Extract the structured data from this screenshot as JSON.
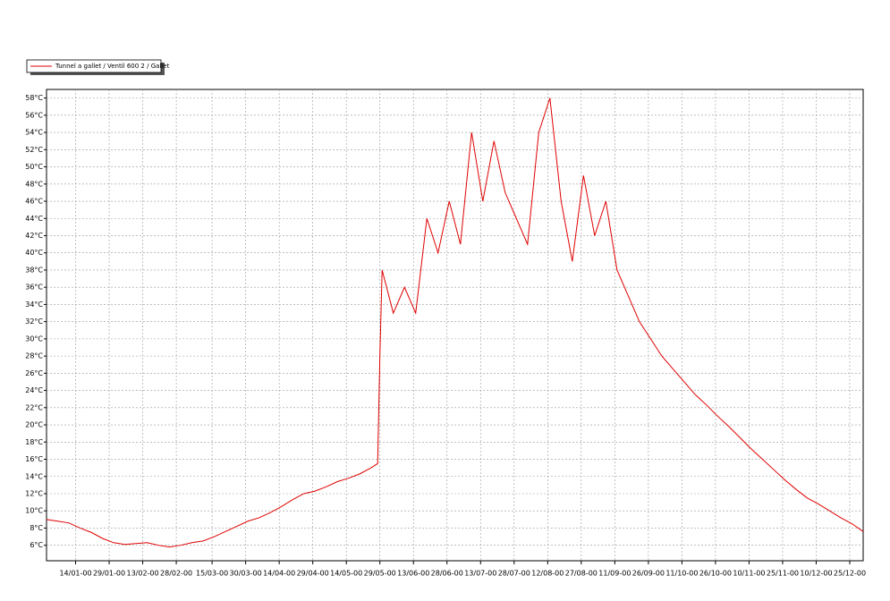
{
  "chart_data": {
    "type": "line",
    "legend_position": "top-left",
    "grid": true,
    "x": [
      "2000-01-01",
      "2000-01-06",
      "2000-01-11",
      "2000-01-16",
      "2000-01-21",
      "2000-01-26",
      "2000-01-31",
      "2000-02-05",
      "2000-02-10",
      "2000-02-15",
      "2000-02-20",
      "2000-02-25",
      "2000-03-01",
      "2000-03-06",
      "2000-03-11",
      "2000-03-16",
      "2000-03-21",
      "2000-03-26",
      "2000-03-31",
      "2000-04-05",
      "2000-04-10",
      "2000-04-15",
      "2000-04-20",
      "2000-04-25",
      "2000-04-30",
      "2000-05-05",
      "2000-05-10",
      "2000-05-15",
      "2000-05-20",
      "2000-05-25",
      "2000-05-28",
      "2000-05-29",
      "2000-05-30",
      "2000-06-04",
      "2000-06-09",
      "2000-06-14",
      "2000-06-19",
      "2000-06-24",
      "2000-06-29",
      "2000-07-04",
      "2000-07-09",
      "2000-07-14",
      "2000-07-19",
      "2000-07-24",
      "2000-07-29",
      "2000-08-03",
      "2000-08-08",
      "2000-08-13",
      "2000-08-18",
      "2000-08-23",
      "2000-08-28",
      "2000-09-02",
      "2000-09-07",
      "2000-09-12",
      "2000-09-17",
      "2000-09-22",
      "2000-09-27",
      "2000-10-02",
      "2000-10-07",
      "2000-10-12",
      "2000-10-17",
      "2000-10-22",
      "2000-10-27",
      "2000-11-01",
      "2000-11-06",
      "2000-11-11",
      "2000-11-16",
      "2000-11-21",
      "2000-11-26",
      "2000-12-01",
      "2000-12-06",
      "2000-12-11",
      "2000-12-16",
      "2000-12-21",
      "2000-12-26",
      "2000-12-31"
    ],
    "series": [
      {
        "name": "Tunnel a gallet  /  Ventil 600 2 / Gallet",
        "color": "#e00000",
        "values": [
          9.0,
          8.8,
          8.6,
          8.0,
          7.5,
          6.8,
          6.3,
          6.1,
          6.2,
          6.3,
          6.0,
          5.8,
          6.0,
          6.3,
          6.5,
          7.0,
          7.6,
          8.2,
          8.8,
          9.2,
          9.8,
          10.5,
          11.3,
          12.0,
          12.3,
          12.8,
          13.4,
          13.8,
          14.3,
          15.0,
          15.5,
          28,
          38,
          33,
          36,
          33,
          44,
          40,
          46,
          41,
          54,
          46,
          53,
          47,
          44,
          41,
          54,
          58,
          46,
          39,
          49,
          42,
          46,
          38,
          35,
          32,
          30,
          28,
          26.5,
          25,
          23.5,
          22.3,
          21,
          19.8,
          18.5,
          17.2,
          16,
          14.8,
          13.6,
          12.5,
          11.5,
          10.8,
          10,
          9.2,
          8.5,
          7.6
        ]
      }
    ],
    "xlim": [
      "2000-01-01",
      "2000-12-31"
    ],
    "xticks": [
      {
        "value": "2000-01-14",
        "label": "14/01-00"
      },
      {
        "value": "2000-01-29",
        "label": "29/01-00"
      },
      {
        "value": "2000-02-13",
        "label": "13/02-00"
      },
      {
        "value": "2000-02-28",
        "label": "28/02-00"
      },
      {
        "value": "2000-03-15",
        "label": "15/03-00"
      },
      {
        "value": "2000-03-30",
        "label": "30/03-00"
      },
      {
        "value": "2000-04-14",
        "label": "14/04-00"
      },
      {
        "value": "2000-04-29",
        "label": "29/04-00"
      },
      {
        "value": "2000-05-14",
        "label": "14/05-00"
      },
      {
        "value": "2000-05-29",
        "label": "29/05-00"
      },
      {
        "value": "2000-06-13",
        "label": "13/06-00"
      },
      {
        "value": "2000-06-28",
        "label": "28/06-00"
      },
      {
        "value": "2000-07-13",
        "label": "13/07-00"
      },
      {
        "value": "2000-07-28",
        "label": "28/07-00"
      },
      {
        "value": "2000-08-12",
        "label": "12/08-00"
      },
      {
        "value": "2000-08-27",
        "label": "27/08-00"
      },
      {
        "value": "2000-09-11",
        "label": "11/09-00"
      },
      {
        "value": "2000-09-26",
        "label": "26/09-00"
      },
      {
        "value": "2000-10-11",
        "label": "11/10-00"
      },
      {
        "value": "2000-10-26",
        "label": "26/10-00"
      },
      {
        "value": "2000-11-10",
        "label": "10/11-00"
      },
      {
        "value": "2000-11-25",
        "label": "25/11-00"
      },
      {
        "value": "2000-12-10",
        "label": "10/12-00"
      },
      {
        "value": "2000-12-25",
        "label": "25/12-00"
      }
    ],
    "ylim": [
      4.2,
      59
    ],
    "yticks": [
      {
        "value": 6,
        "label": "6°C"
      },
      {
        "value": 8,
        "label": "8°C"
      },
      {
        "value": 10,
        "label": "10°C"
      },
      {
        "value": 12,
        "label": "12°C"
      },
      {
        "value": 14,
        "label": "14°C"
      },
      {
        "value": 16,
        "label": "16°C"
      },
      {
        "value": 18,
        "label": "18°C"
      },
      {
        "value": 20,
        "label": "20°C"
      },
      {
        "value": 22,
        "label": "22°C"
      },
      {
        "value": 24,
        "label": "24°C"
      },
      {
        "value": 26,
        "label": "26°C"
      },
      {
        "value": 28,
        "label": "28°C"
      },
      {
        "value": 30,
        "label": "30°C"
      },
      {
        "value": 32,
        "label": "32°C"
      },
      {
        "value": 34,
        "label": "34°C"
      },
      {
        "value": 36,
        "label": "36°C"
      },
      {
        "value": 38,
        "label": "38°C"
      },
      {
        "value": 40,
        "label": "40°C"
      },
      {
        "value": 42,
        "label": "42°C"
      },
      {
        "value": 44,
        "label": "44°C"
      },
      {
        "value": 46,
        "label": "46°C"
      },
      {
        "value": 48,
        "label": "48°C"
      },
      {
        "value": 50,
        "label": "50°C"
      },
      {
        "value": 52,
        "label": "52°C"
      },
      {
        "value": 54,
        "label": "54°C"
      },
      {
        "value": 56,
        "label": "56°C"
      },
      {
        "value": 58,
        "label": "58°C"
      }
    ]
  }
}
